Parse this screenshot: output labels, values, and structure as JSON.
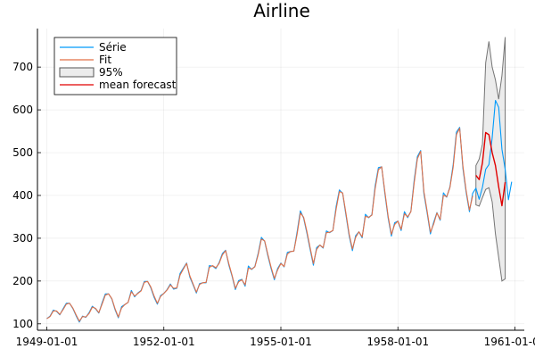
{
  "chart_data": {
    "type": "line",
    "title": "Airline",
    "xlabel": "",
    "ylabel": "",
    "xlim": [
      "1949-01-01",
      "1961-01-01"
    ],
    "ylim": [
      85,
      790
    ],
    "x_ticks": [
      "1949-01-01",
      "1952-01-01",
      "1955-01-01",
      "1958-01-01",
      "1961-01-01"
    ],
    "y_ticks": [
      100,
      200,
      300,
      400,
      500,
      600,
      700
    ],
    "grid": true,
    "legend_position": "top-left",
    "x_start": "1949-01-01",
    "x_step": "month",
    "series": [
      {
        "name": "Série",
        "color": "#009AFA",
        "values": [
          112,
          118,
          132,
          129,
          121,
          135,
          148,
          148,
          136,
          119,
          104,
          118,
          115,
          126,
          141,
          135,
          125,
          149,
          170,
          170,
          158,
          133,
          114,
          140,
          145,
          150,
          178,
          163,
          172,
          178,
          199,
          199,
          184,
          162,
          146,
          166,
          171,
          180,
          193,
          181,
          183,
          218,
          230,
          242,
          209,
          191,
          172,
          194,
          196,
          196,
          236,
          235,
          229,
          243,
          264,
          272,
          237,
          211,
          180,
          201,
          204,
          188,
          235,
          227,
          234,
          264,
          302,
          293,
          259,
          229,
          203,
          229,
          242,
          233,
          267,
          269,
          270,
          315,
          364,
          347,
          312,
          274,
          237,
          278,
          284,
          277,
          317,
          313,
          318,
          374,
          413,
          405,
          355,
          306,
          271,
          306,
          315,
          301,
          356,
          348,
          355,
          422,
          465,
          467,
          404,
          347,
          305,
          336,
          340,
          318,
          362,
          348,
          363,
          435,
          491,
          505,
          404,
          359,
          310,
          337,
          360,
          342,
          406,
          396,
          420,
          472,
          548,
          559,
          463,
          407,
          362,
          405,
          417,
          391,
          419,
          461,
          472,
          535,
          622,
          606,
          508,
          461,
          390,
          432
        ]
      },
      {
        "name": "Fit",
        "color": "#E26F46",
        "values": [
          112,
          117,
          130,
          130,
          122,
          133,
          146,
          148,
          137,
          121,
          106,
          117,
          116,
          124,
          139,
          136,
          126,
          146,
          167,
          170,
          159,
          135,
          116,
          137,
          145,
          150,
          175,
          165,
          171,
          177,
          197,
          199,
          186,
          165,
          148,
          164,
          171,
          179,
          191,
          183,
          184,
          214,
          228,
          241,
          212,
          193,
          174,
          192,
          196,
          197,
          232,
          236,
          231,
          241,
          261,
          271,
          240,
          213,
          183,
          198,
          203,
          191,
          230,
          228,
          233,
          261,
          298,
          294,
          262,
          232,
          206,
          226,
          241,
          234,
          263,
          269,
          270,
          310,
          359,
          349,
          316,
          278,
          241,
          274,
          284,
          278,
          313,
          314,
          318,
          368,
          409,
          406,
          359,
          310,
          275,
          302,
          315,
          303,
          351,
          349,
          354,
          416,
          460,
          467,
          408,
          351,
          309,
          332,
          340,
          321,
          357,
          350,
          362,
          429,
          486,
          503,
          409,
          363,
          314,
          333,
          359,
          344,
          400,
          397,
          418,
          466,
          542,
          557,
          468,
          411,
          366,
          399
        ]
      },
      {
        "name": "mean forecast",
        "color": "#E00000",
        "start_index": 132,
        "values": [
          447,
          437,
          476,
          547,
          542,
          500,
          470,
          420,
          376,
          431
        ]
      }
    ],
    "band": {
      "name": "95%",
      "color": "#C8C8C8",
      "start_index": 132,
      "upper": [
        470,
        485,
        520,
        710,
        760,
        700,
        670,
        625,
        680,
        770
      ],
      "lower": [
        378,
        375,
        395,
        414,
        418,
        385,
        310,
        255,
        200,
        205
      ]
    }
  }
}
